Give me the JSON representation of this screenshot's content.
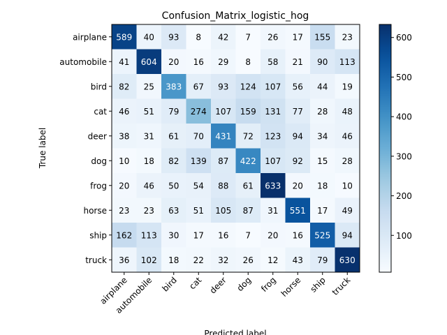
{
  "chart_data": {
    "type": "heatmap",
    "title": "Confusion_Matrix_logistic_hog",
    "xlabel": "Predicted label",
    "ylabel": "True label",
    "x_categories": [
      "airplane",
      "automobile",
      "bird",
      "cat",
      "deer",
      "dog",
      "frog",
      "horse",
      "ship",
      "truck"
    ],
    "y_categories": [
      "airplane",
      "automobile",
      "bird",
      "cat",
      "deer",
      "dog",
      "frog",
      "horse",
      "ship",
      "truck"
    ],
    "values": [
      [
        589,
        40,
        93,
        8,
        42,
        7,
        26,
        17,
        155,
        23
      ],
      [
        41,
        604,
        20,
        16,
        29,
        8,
        58,
        21,
        90,
        113
      ],
      [
        82,
        25,
        383,
        67,
        93,
        124,
        107,
        56,
        44,
        19
      ],
      [
        46,
        51,
        79,
        274,
        107,
        159,
        131,
        77,
        28,
        48
      ],
      [
        38,
        31,
        61,
        70,
        431,
        72,
        123,
        94,
        34,
        46
      ],
      [
        10,
        18,
        82,
        139,
        87,
        422,
        107,
        92,
        15,
        28
      ],
      [
        20,
        46,
        50,
        54,
        88,
        61,
        633,
        20,
        18,
        10
      ],
      [
        23,
        23,
        63,
        51,
        105,
        87,
        31,
        551,
        17,
        49
      ],
      [
        162,
        113,
        30,
        17,
        16,
        7,
        20,
        16,
        525,
        94
      ],
      [
        36,
        102,
        18,
        22,
        32,
        26,
        12,
        43,
        79,
        630
      ]
    ],
    "colormap": "Blues",
    "colorbar": {
      "ticks": [
        100,
        200,
        300,
        400,
        500,
        600
      ],
      "range": [
        7,
        633
      ]
    },
    "text_color_light": "#ffffff",
    "text_color_dark": "#000000"
  }
}
